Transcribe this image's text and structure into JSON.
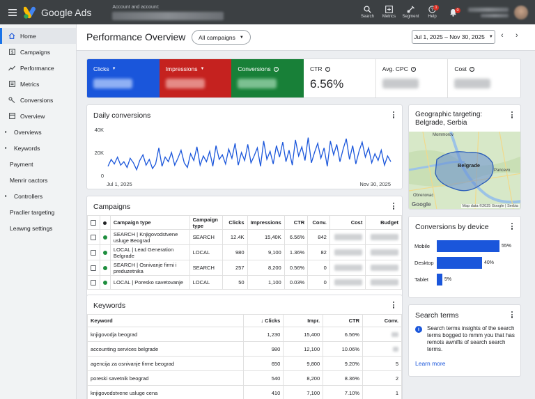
{
  "topbar": {
    "app_name": "Google Ads",
    "account_label": "Account and account:",
    "actions": [
      {
        "label": "Search",
        "icon": "search-icon"
      },
      {
        "label": "Metrics",
        "icon": "metrics-icon"
      },
      {
        "label": "Segment",
        "icon": "segment-icon"
      },
      {
        "label": "Help",
        "icon": "help-icon",
        "badge": "1"
      }
    ],
    "notifications_badge": "0"
  },
  "sidebar": {
    "items": [
      {
        "label": "Home",
        "icon": "home-icon",
        "active": true
      },
      {
        "label": "Campaigns",
        "icon": "campaigns-icon"
      },
      {
        "label": "Performance",
        "icon": "performance-icon"
      },
      {
        "label": "Metrics",
        "icon": "metrics-icon"
      },
      {
        "label": "Conversions",
        "icon": "conversions-icon"
      },
      {
        "label": "Overview",
        "icon": "overview-icon"
      },
      {
        "label": "Overviews",
        "caret": true
      },
      {
        "label": "Keywords",
        "caret": true
      },
      {
        "label": "Payment"
      },
      {
        "label": "Menrir oactors"
      },
      {
        "label": "Controllers",
        "caret": true
      },
      {
        "label": "Pracller targeting"
      },
      {
        "label": "Leawng settings"
      }
    ]
  },
  "header": {
    "title": "Performance Overview",
    "filter": "All campaigns",
    "date_range": "Jul 1, 2025 – Nov 30, 2025"
  },
  "metrics": [
    {
      "label": "Clicks",
      "dropdown": true,
      "color": "#1a56db"
    },
    {
      "label": "Impressions",
      "dropdown": true,
      "color": "#c5221f"
    },
    {
      "label": "Conversions",
      "help": true,
      "color": "#188038"
    },
    {
      "label": "CTR",
      "help": true,
      "value": "6.56%"
    },
    {
      "label": "Avg. CPC",
      "help": true
    },
    {
      "label": "Cost",
      "help": true
    }
  ],
  "daily_conversions": {
    "title": "Daily conversions",
    "y_ticks": [
      "40K",
      "20K",
      "0"
    ],
    "x_start": "Jul 1, 2025",
    "x_end": "Nov 30, 2025"
  },
  "chart_data": {
    "type": "line",
    "title": "Daily conversions",
    "ylim": [
      0,
      40000
    ],
    "x_range": [
      "2025-07-01",
      "2025-11-30"
    ],
    "series": [
      {
        "color": "#1a56db",
        "values": [
          8000,
          14000,
          10000,
          16000,
          9000,
          12000,
          7000,
          15000,
          11000,
          5000,
          13000,
          18000,
          9000,
          14000,
          6000,
          10000,
          24000,
          8000,
          16000,
          12000,
          20000,
          9000,
          15000,
          22000,
          11000,
          7000,
          19000,
          13000,
          25000,
          9000,
          17000,
          12000,
          21000,
          8000,
          26000,
          14000,
          18000,
          10000,
          23000,
          15000,
          28000,
          9000,
          20000,
          13000,
          27000,
          11000,
          17000,
          24000,
          8000,
          30000,
          14000,
          21000,
          10000,
          26000,
          16000,
          29000,
          12000,
          22000,
          9000,
          31000,
          17000,
          25000,
          13000,
          33000,
          11000,
          20000,
          28000,
          15000,
          24000,
          8000,
          30000,
          18000,
          27000,
          12000,
          23000,
          32000,
          14000,
          26000,
          10000,
          21000,
          29000,
          16000,
          24000,
          11000,
          19000,
          13000,
          22000,
          9000,
          17000,
          12000
        ]
      }
    ]
  },
  "geo": {
    "title": "Geographic targeting: Belgrade, Serbia",
    "place_labels": [
      "Mommorov",
      "Belgrade",
      "Pancevo",
      "Obrenovac"
    ],
    "attribution": "Map data ©2025 Google",
    "serbia_label": "Serbia",
    "brand": "Google"
  },
  "campaigns": {
    "title": "Campaigns",
    "columns": [
      "Campaign type",
      "Campaign type",
      "Clicks",
      "Impressions",
      "CTR",
      "Conv.",
      "Cost",
      "Budget"
    ],
    "rows": [
      {
        "name": "SEARCH | Knjigovodstvene usluge Beograd",
        "type": "SEARCH",
        "clicks": "12.4K",
        "impressions": "15,40K",
        "ctr": "6.56%",
        "conv": "842"
      },
      {
        "name": "LOCAL | Lead Generation Belgrade",
        "type": "LOCAL",
        "clicks": "980",
        "impressions": "9,100",
        "ctr": "1.36%",
        "conv": "82"
      },
      {
        "name": "SEARCH | Osnivanje firmi i preduzetnika",
        "type": "SEARCH",
        "clicks": "257",
        "impressions": "8,200",
        "ctr": "0.56%",
        "conv": "0"
      },
      {
        "name": "LOCAL | Poresko savetovanje",
        "type": "LOCAL",
        "clicks": "50",
        "impressions": "1,100",
        "ctr": "0.03%",
        "conv": "0"
      }
    ]
  },
  "keywords": {
    "title": "Keywords",
    "columns": [
      "Keyword",
      "Clicks",
      "Impr.",
      "CTR",
      "Conv."
    ],
    "rows": [
      {
        "keyword": "knjigovodja beograd",
        "clicks": "1,230",
        "impr": "15,400",
        "ctr": "6.56%",
        "conv": ""
      },
      {
        "keyword": "accounting services belgrade",
        "clicks": "980",
        "impr": "12,100",
        "ctr": "10.06%",
        "conv": ""
      },
      {
        "keyword": "agencija za osnivanje firme beograd",
        "clicks": "650",
        "impr": "9,800",
        "ctr": "9.20%",
        "conv": "5"
      },
      {
        "keyword": "poreski savetnik beograd",
        "clicks": "540",
        "impr": "8,200",
        "ctr": "8.36%",
        "conv": "2"
      },
      {
        "keyword": "knjigovodstvene usluge cena",
        "clicks": "410",
        "impr": "7,100",
        "ctr": "7.10%",
        "conv": "1"
      }
    ]
  },
  "devices": {
    "title": "Conversions by device",
    "rows": [
      {
        "label": "Mobile",
        "pct": "55%",
        "value": 0.55
      },
      {
        "label": "Desktop",
        "pct": "40%",
        "value": 0.4
      },
      {
        "label": "Tablet",
        "pct": "5%",
        "value": 0.05
      }
    ]
  },
  "search_terms": {
    "title": "Search terms",
    "info": "Search terms insights of the search terms bogged to mmm you that has remots awnifls of search search terms.",
    "link": "Learn more"
  }
}
